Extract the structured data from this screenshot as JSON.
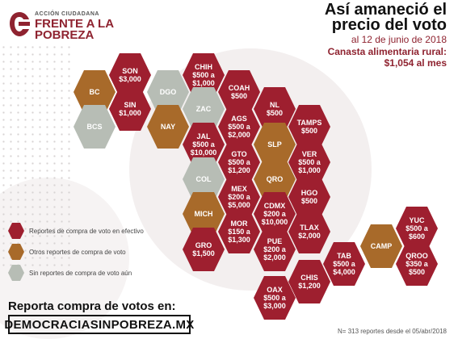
{
  "colors": {
    "cash": "#9e1f2f",
    "other": "#a86a2a",
    "none": "#b7bdb5",
    "accent": "#8f2330"
  },
  "logo": {
    "small": "ACCIÓN CIUDADANA",
    "line1": "FRENTE A LA",
    "line2": "POBREZA"
  },
  "title": {
    "line1": "Así amaneció el",
    "line2": "precio del voto",
    "date": "al 12 de junio de 2018",
    "basket_label": "Canasta alimentaria rural:",
    "basket_value": "$1,054 al mes"
  },
  "legend": [
    {
      "label": "Reportes de compra de voto en efectivo",
      "status": "cash"
    },
    {
      "label": "Otros reportes de compra de voto",
      "status": "other"
    },
    {
      "label": "Sin reportes de compra de voto aún",
      "status": "none"
    }
  ],
  "states": [
    {
      "name": "SON",
      "lines": [
        "$3,000"
      ],
      "status": "cash"
    },
    {
      "name": "CHIH",
      "lines": [
        "$500 a",
        "$1,000"
      ],
      "status": "cash"
    },
    {
      "name": "BC",
      "lines": [],
      "status": "other"
    },
    {
      "name": "DGO",
      "lines": [],
      "status": "none"
    },
    {
      "name": "COAH",
      "lines": [
        "$500"
      ],
      "status": "cash"
    },
    {
      "name": "SIN",
      "lines": [
        "$1,000"
      ],
      "status": "cash"
    },
    {
      "name": "ZAC",
      "lines": [],
      "status": "none"
    },
    {
      "name": "NL",
      "lines": [
        "$500"
      ],
      "status": "cash"
    },
    {
      "name": "BCS",
      "lines": [],
      "status": "none"
    },
    {
      "name": "NAY",
      "lines": [],
      "status": "other"
    },
    {
      "name": "AGS",
      "lines": [
        "$500 a",
        "$2,000"
      ],
      "status": "cash"
    },
    {
      "name": "TAMPS",
      "lines": [
        "$500"
      ],
      "status": "cash"
    },
    {
      "name": "JAL",
      "lines": [
        "$500 a",
        "$10,000"
      ],
      "status": "cash"
    },
    {
      "name": "SLP",
      "lines": [],
      "status": "other"
    },
    {
      "name": "GTO",
      "lines": [
        "$500 a",
        "$1,200"
      ],
      "status": "cash"
    },
    {
      "name": "VER",
      "lines": [
        "$500 a",
        "$1,000"
      ],
      "status": "cash"
    },
    {
      "name": "COL",
      "lines": [],
      "status": "none"
    },
    {
      "name": "QRO",
      "lines": [],
      "status": "other"
    },
    {
      "name": "MEX",
      "lines": [
        "$200 a",
        "$5,000"
      ],
      "status": "cash"
    },
    {
      "name": "HGO",
      "lines": [
        "$500"
      ],
      "status": "cash"
    },
    {
      "name": "MICH",
      "lines": [],
      "status": "other"
    },
    {
      "name": "CDMX",
      "lines": [
        "$200 a",
        "$10,000"
      ],
      "status": "cash"
    },
    {
      "name": "YUC",
      "lines": [
        "$500 a",
        "$600"
      ],
      "status": "cash"
    },
    {
      "name": "MOR",
      "lines": [
        "$150 a",
        "$1,300"
      ],
      "status": "cash"
    },
    {
      "name": "TLAX",
      "lines": [
        "$2,000"
      ],
      "status": "cash"
    },
    {
      "name": "CAMP",
      "lines": [],
      "status": "other"
    },
    {
      "name": "GRO",
      "lines": [
        "$1,500"
      ],
      "status": "cash"
    },
    {
      "name": "PUE",
      "lines": [
        "$200 a",
        "$2,000"
      ],
      "status": "cash"
    },
    {
      "name": "TAB",
      "lines": [
        "$500 a",
        "$4,000"
      ],
      "status": "cash"
    },
    {
      "name": "QROO",
      "lines": [
        "$350 a",
        "$500"
      ],
      "status": "cash"
    },
    {
      "name": "CHIS",
      "lines": [
        "$1,200"
      ],
      "status": "cash"
    },
    {
      "name": "OAX",
      "lines": [
        "$500 a",
        "$3,000"
      ],
      "status": "cash"
    }
  ],
  "cta": {
    "text": "Reporta compra de votos en:",
    "url": "DEMOCRACIASINPOBREZA.MX"
  },
  "footnote": "N= 313 reportes desde el 05/abr/2018"
}
